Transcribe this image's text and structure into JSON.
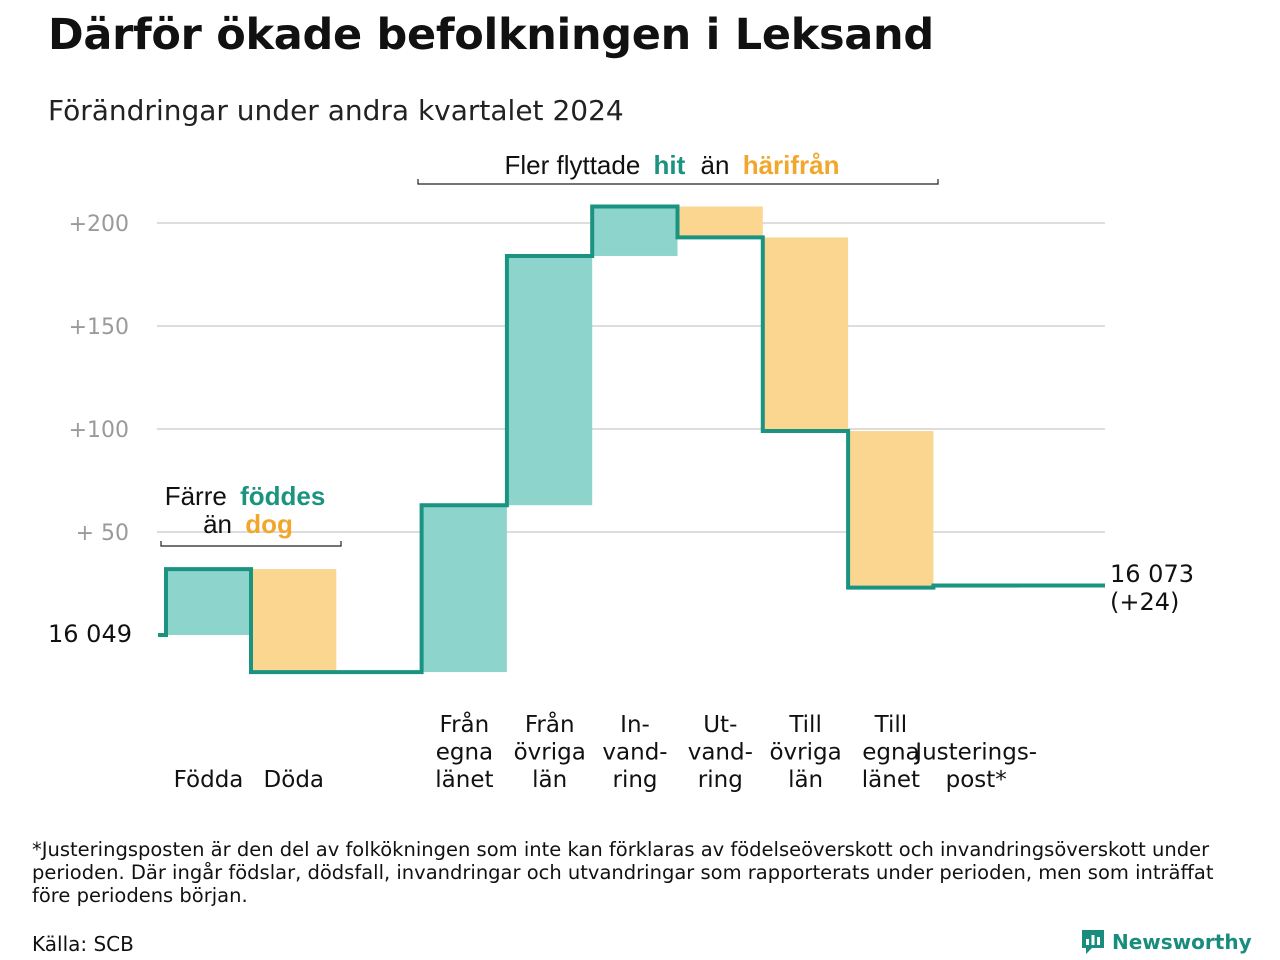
{
  "title": "Därför ökade befolkningen i Leksand",
  "subtitle": "Förändringar under andra kvartalet 2024",
  "footnote": "*Justeringsposten är den del av folkökningen som inte kan förklaras av födelseöverskott och invandringsöverskott under perioden. Där ingår födslar, dödsfall, invandringar och utvandringar som rapporterats under perioden, men som inträffat före periodens början.",
  "source": "Källa: SCB",
  "brand": "Newsworthy",
  "annotations": {
    "top": {
      "text1": "Fler flyttade",
      "hit": "hit",
      "text2": "än",
      "harifran": "härifrån"
    },
    "left": {
      "line1a": "Färre",
      "foddes": "föddes",
      "line2a": "än",
      "dog": "dog"
    }
  },
  "colors": {
    "teal": "#1a9380",
    "teal_fill": "#8dd5cc",
    "orange_fill": "#fad690",
    "orange_text": "#f2a62b",
    "grid": "#dddddd",
    "tick": "#9a9a9a"
  },
  "chart_data": {
    "type": "waterfall",
    "start_value": 16049,
    "start_label": "16  049",
    "end_label": "16 073",
    "end_change_label": "(+24)",
    "yticks": [
      {
        "value": 200,
        "label": "+200"
      },
      {
        "value": 150,
        "label": "+150"
      },
      {
        "value": 100,
        "label": "+100"
      },
      {
        "value": 50,
        "label": "+  50"
      }
    ],
    "ylim": [
      -30,
      210
    ],
    "steps": [
      {
        "label": [
          "Födda"
        ],
        "value": 32
      },
      {
        "label": [
          "Döda"
        ],
        "value": -50
      },
      {
        "label": [
          ""
        ],
        "value": 0
      },
      {
        "label": [
          "Från",
          "egna",
          "länet"
        ],
        "value": 81
      },
      {
        "label": [
          "Från",
          "övriga",
          "län"
        ],
        "value": 121
      },
      {
        "label": [
          "In-",
          "vand-",
          "ring"
        ],
        "value": 24
      },
      {
        "label": [
          "Ut-",
          "vand-",
          "ring"
        ],
        "value": -15
      },
      {
        "label": [
          "Till",
          "övriga",
          "län"
        ],
        "value": -94
      },
      {
        "label": [
          "Till",
          "egna",
          "länet"
        ],
        "value": -76
      },
      {
        "label": [
          "Justerings-",
          "post*"
        ],
        "value": 1
      }
    ]
  }
}
